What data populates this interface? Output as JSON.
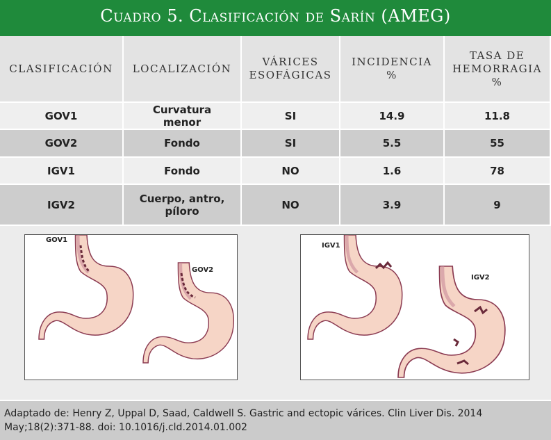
{
  "title": "Cuadro 5. Clasificación de Sarín (AMEG)",
  "table": {
    "header": [
      [
        "CLASIFICACIÓN"
      ],
      [
        "LOCALIZACIÓN"
      ],
      [
        "VÁRICES",
        "ESOFÁGICAS"
      ],
      [
        "INCIDENCIA",
        "%"
      ],
      [
        "TASA DE",
        "HEMORRAGIA",
        "%"
      ]
    ],
    "rows": [
      [
        "GOV1",
        "Curvatura menor",
        "SI",
        14.9,
        11.8
      ],
      [
        "GOV2",
        "Fondo",
        "SI",
        5.5,
        55
      ],
      [
        "IGV1",
        "Fondo",
        "NO",
        1.6,
        78
      ],
      [
        "IGV2",
        "Cuerpo, antro, píloro",
        "NO",
        3.9,
        9
      ]
    ]
  },
  "figures": [
    {
      "labels": [
        "GOV1",
        "GOV2"
      ]
    },
    {
      "labels": [
        "IGV1",
        "IGV2"
      ]
    }
  ],
  "footer": "Adaptado de: Henry Z, Uppal D, Saad, Caldwell S. Gastric and ectopic várices. Clin Liver Dis. 2014 May;18(2):371-88. doi: 10.1016/j.cld.2014.01.002"
}
